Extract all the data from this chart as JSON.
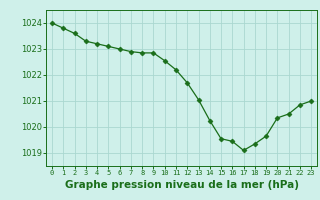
{
  "x": [
    0,
    1,
    2,
    3,
    4,
    5,
    6,
    7,
    8,
    9,
    10,
    11,
    12,
    13,
    14,
    15,
    16,
    17,
    18,
    19,
    20,
    21,
    22,
    23
  ],
  "y": [
    1024.0,
    1023.8,
    1023.6,
    1023.3,
    1023.2,
    1023.1,
    1023.0,
    1022.9,
    1022.85,
    1022.85,
    1022.55,
    1022.2,
    1021.7,
    1021.05,
    1020.25,
    1019.55,
    1019.45,
    1019.1,
    1019.35,
    1019.65,
    1020.35,
    1020.5,
    1020.85,
    1021.0
  ],
  "line_color": "#1a6e1a",
  "marker": "D",
  "marker_size": 2.5,
  "bg_color": "#cff0ea",
  "grid_color": "#aad8d0",
  "xlabel": "Graphe pression niveau de la mer (hPa)",
  "xlabel_fontsize": 7.5,
  "ylabel_ticks": [
    1019,
    1020,
    1021,
    1022,
    1023,
    1024
  ],
  "xtick_labels": [
    "0",
    "1",
    "2",
    "3",
    "4",
    "5",
    "6",
    "7",
    "8",
    "9",
    "10",
    "11",
    "12",
    "13",
    "14",
    "15",
    "16",
    "17",
    "18",
    "19",
    "20",
    "21",
    "22",
    "23"
  ],
  "ylim": [
    1018.5,
    1024.5
  ],
  "xlim": [
    -0.5,
    23.5
  ]
}
